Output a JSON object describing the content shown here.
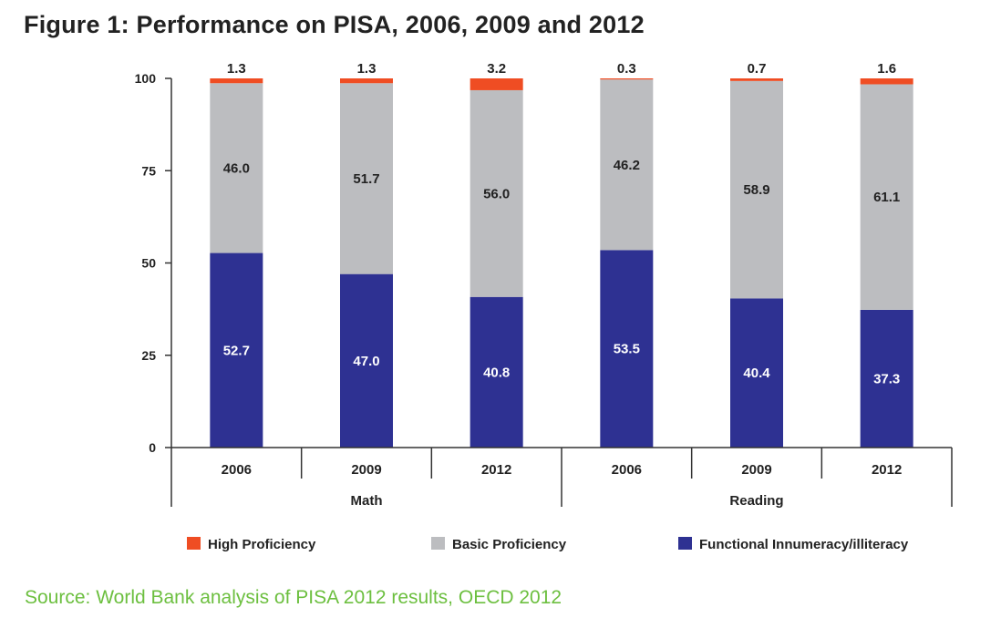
{
  "title": "Figure 1: Performance on PISA, 2006, 2009 and 2012",
  "source": "Source: World Bank analysis of PISA 2012 results, OECD 2012",
  "colors": {
    "high": "#ef4d23",
    "basic": "#bcbdc0",
    "functional": "#2e3192",
    "axis": "#333333",
    "source_text": "#6cbf3f"
  },
  "chart_data": {
    "type": "bar",
    "stacked": true,
    "groups": [
      {
        "name": "Math",
        "categories": [
          "2006",
          "2009",
          "2012"
        ]
      },
      {
        "name": "Reading",
        "categories": [
          "2006",
          "2009",
          "2012"
        ]
      }
    ],
    "categories": [
      "2006",
      "2009",
      "2012",
      "2006",
      "2009",
      "2012"
    ],
    "series": [
      {
        "name": "Functional Innumeracy/illiteracy",
        "color": "#2e3192",
        "values": [
          52.7,
          47.0,
          40.8,
          53.5,
          40.4,
          37.3
        ]
      },
      {
        "name": "Basic Proficiency",
        "color": "#bcbdc0",
        "values": [
          46.0,
          51.7,
          56.0,
          46.2,
          58.9,
          61.1
        ]
      },
      {
        "name": "High Proficiency",
        "color": "#ef4d23",
        "values": [
          1.3,
          1.3,
          3.2,
          0.3,
          0.7,
          1.6
        ]
      }
    ],
    "legend_order": [
      "High Proficiency",
      "Basic Proficiency",
      "Functional Innumeracy/illiteracy"
    ],
    "legend_position": "bottom",
    "ylim": [
      0,
      100
    ],
    "yticks": [
      0,
      25,
      50,
      75,
      100
    ],
    "grid": false,
    "title": "Figure 1: Performance on PISA, 2006, 2009 and 2012",
    "xlabel": "",
    "ylabel": ""
  }
}
